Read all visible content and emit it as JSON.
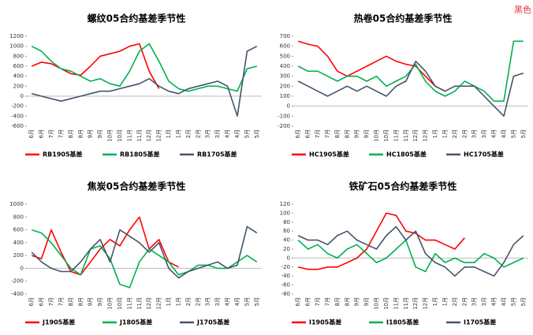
{
  "corner_label": "黑色",
  "chart_data": [
    {
      "type": "line",
      "title": "螺纹05合约基差季节性",
      "categories": [
        "6月",
        "6月",
        "7月",
        "7月",
        "8月",
        "8月",
        "9月",
        "9月",
        "10月",
        "10月",
        "11月",
        "11月",
        "12月",
        "12月",
        "1月",
        "1月",
        "2月",
        "2月",
        "3月",
        "3月",
        "4月",
        "4月",
        "5月",
        "5月"
      ],
      "ylim": [
        -600,
        1200
      ],
      "yticks": [
        -600,
        -400,
        -200,
        0,
        200,
        400,
        600,
        800,
        1000,
        1200
      ],
      "series": [
        {
          "name": "RB1905基差",
          "color": "#ff0000",
          "values": [
            600,
            680,
            650,
            550,
            450,
            420,
            600,
            800,
            850,
            900,
            1000,
            1050,
            500,
            150,
            null,
            null,
            null,
            null,
            null,
            null,
            null,
            null,
            null,
            null
          ]
        },
        {
          "name": "RB1805基差",
          "color": "#00b050",
          "values": [
            1000,
            900,
            700,
            550,
            500,
            400,
            300,
            350,
            250,
            200,
            500,
            900,
            1050,
            700,
            300,
            150,
            100,
            150,
            200,
            200,
            150,
            100,
            550,
            600
          ]
        },
        {
          "name": "RB1705基差",
          "color": "#44546a",
          "values": [
            50,
            0,
            -50,
            -100,
            -50,
            0,
            50,
            100,
            100,
            150,
            200,
            250,
            350,
            200,
            100,
            50,
            150,
            200,
            250,
            300,
            200,
            -400,
            900,
            1000
          ]
        }
      ]
    },
    {
      "type": "line",
      "title": "热卷05合约基差季节性",
      "categories": [
        "6月",
        "6月",
        "7月",
        "7月",
        "8月",
        "8月",
        "9月",
        "9月",
        "10月",
        "10月",
        "11月",
        "11月",
        "12月",
        "12月",
        "1月",
        "1月",
        "2月",
        "2月",
        "3月",
        "3月",
        "4月",
        "4月",
        "5月",
        "5月"
      ],
      "ylim": [
        -200,
        700
      ],
      "yticks": [
        -200,
        -100,
        0,
        100,
        200,
        300,
        400,
        500,
        600,
        700
      ],
      "series": [
        {
          "name": "HC1905基差",
          "color": "#ff0000",
          "values": [
            650,
            620,
            600,
            500,
            350,
            300,
            350,
            400,
            450,
            500,
            450,
            420,
            400,
            300,
            200,
            150,
            null,
            null,
            null,
            null,
            null,
            null,
            null,
            null
          ]
        },
        {
          "name": "HC1805基差",
          "color": "#00b050",
          "values": [
            400,
            350,
            350,
            300,
            250,
            300,
            300,
            250,
            300,
            200,
            250,
            300,
            420,
            250,
            150,
            100,
            150,
            250,
            200,
            150,
            50,
            50,
            650,
            650
          ]
        },
        {
          "name": "HC1705基差",
          "color": "#44546a",
          "values": [
            250,
            200,
            150,
            100,
            150,
            200,
            150,
            200,
            150,
            100,
            200,
            250,
            450,
            350,
            200,
            150,
            200,
            200,
            200,
            100,
            0,
            -100,
            300,
            330
          ]
        }
      ]
    },
    {
      "type": "line",
      "title": "焦炭05合约基差季节性",
      "categories": [
        "6月",
        "6月",
        "7月",
        "7月",
        "8月",
        "8月",
        "9月",
        "9月",
        "10月",
        "10月",
        "11月",
        "11月",
        "12月",
        "12月",
        "1月",
        "1月",
        "2月",
        "2月",
        "3月",
        "3月",
        "4月",
        "4月",
        "5月",
        "5月"
      ],
      "ylim": [
        -400,
        1000
      ],
      "yticks": [
        -400,
        -200,
        0,
        200,
        400,
        600,
        800,
        1000
      ],
      "series": [
        {
          "name": "J1905基差",
          "color": "#ff0000",
          "values": [
            200,
            150,
            600,
            250,
            -50,
            -100,
            100,
            300,
            450,
            350,
            600,
            800,
            300,
            450,
            100,
            20,
            null,
            null,
            null,
            null,
            null,
            null,
            null,
            null
          ]
        },
        {
          "name": "J1805基差",
          "color": "#00b050",
          "values": [
            600,
            550,
            400,
            200,
            0,
            -100,
            300,
            350,
            150,
            -250,
            -300,
            100,
            300,
            200,
            100,
            -100,
            -50,
            50,
            50,
            0,
            0,
            100,
            200,
            100
          ]
        },
        {
          "name": "J1705基差",
          "color": "#44546a",
          "values": [
            250,
            100,
            0,
            -50,
            -50,
            100,
            300,
            450,
            100,
            600,
            500,
            400,
            250,
            400,
            0,
            -150,
            -50,
            0,
            50,
            100,
            0,
            50,
            650,
            550
          ]
        }
      ]
    },
    {
      "type": "line",
      "title": "铁矿石05合约基差季节性",
      "categories": [
        "6月",
        "6月",
        "7月",
        "7月",
        "8月",
        "8月",
        "9月",
        "9月",
        "10月",
        "10月",
        "11月",
        "11月",
        "12月",
        "12月",
        "1月",
        "1月",
        "2月",
        "2月",
        "3月",
        "3月",
        "4月",
        "4月",
        "5月",
        "5月"
      ],
      "ylim": [
        -80,
        120
      ],
      "yticks": [
        -80,
        -60,
        -40,
        -20,
        0,
        20,
        40,
        60,
        80,
        100,
        120
      ],
      "series": [
        {
          "name": "I1905基差",
          "color": "#ff0000",
          "values": [
            -20,
            -25,
            -25,
            -20,
            -20,
            -10,
            0,
            20,
            60,
            100,
            95,
            60,
            55,
            40,
            40,
            30,
            20,
            45,
            null,
            null,
            null,
            null,
            null,
            null
          ]
        },
        {
          "name": "I1805基差",
          "color": "#00b050",
          "values": [
            40,
            20,
            30,
            10,
            0,
            20,
            30,
            10,
            -10,
            0,
            20,
            40,
            -20,
            -30,
            10,
            -10,
            0,
            -10,
            -10,
            10,
            0,
            -20,
            -10,
            0
          ]
        },
        {
          "name": "I1705基差",
          "color": "#44546a",
          "values": [
            50,
            40,
            40,
            30,
            50,
            60,
            40,
            30,
            20,
            50,
            70,
            40,
            60,
            10,
            -10,
            -20,
            -40,
            -20,
            -20,
            -30,
            -40,
            -10,
            30,
            50
          ]
        }
      ]
    }
  ]
}
